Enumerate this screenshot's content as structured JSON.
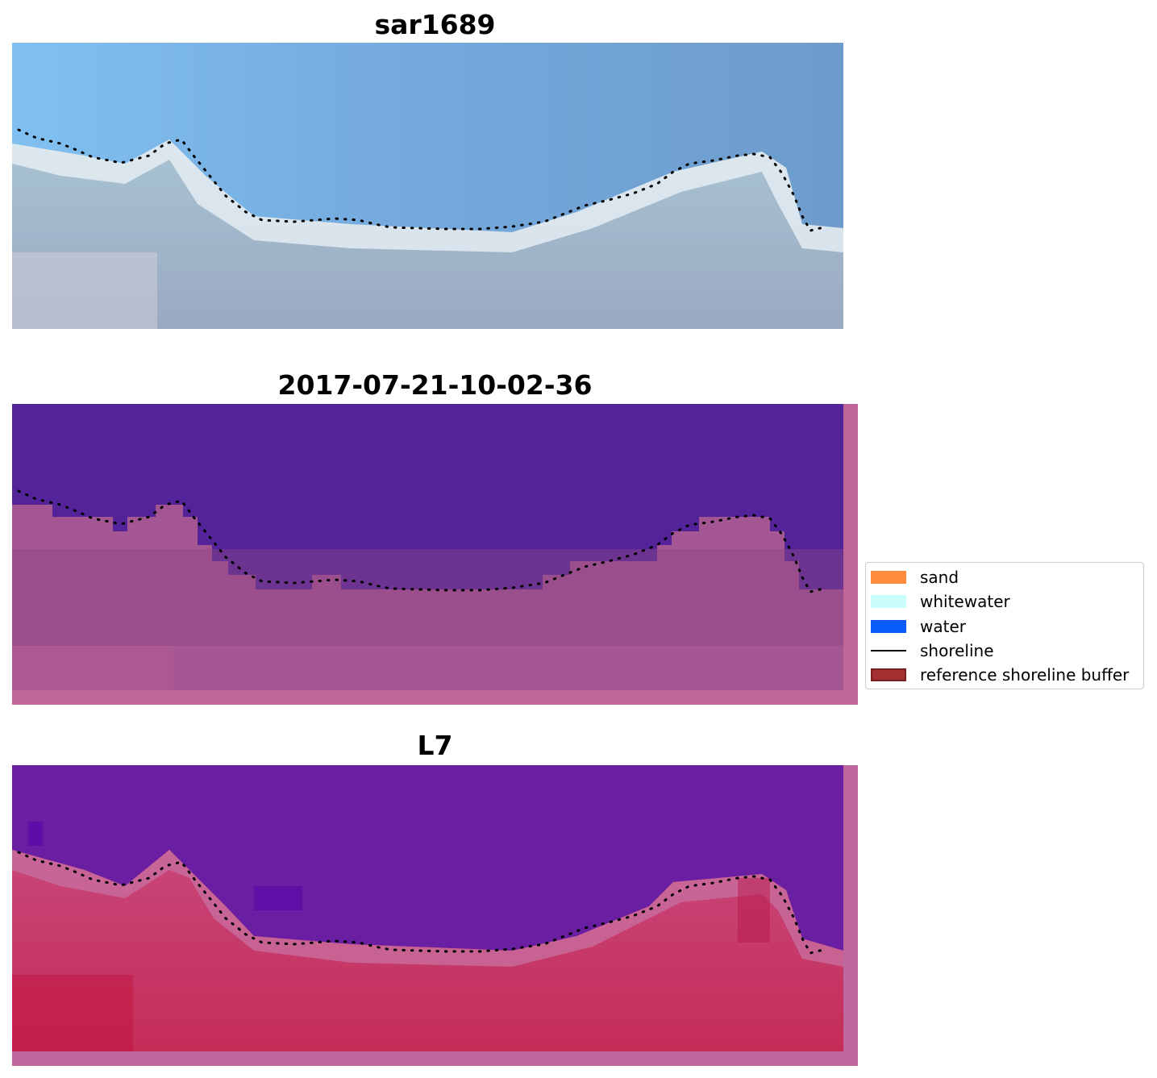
{
  "panels": [
    {
      "title": "sar1689",
      "kind": "rgb"
    },
    {
      "title": "2017-07-21-10-02-36",
      "kind": "classified"
    },
    {
      "title": "L7",
      "kind": "index"
    }
  ],
  "legend": {
    "items": [
      {
        "label": "sand",
        "color": "#ff8c3a",
        "type": "patch"
      },
      {
        "label": "whitewater",
        "color": "#c8fdfc",
        "type": "patch"
      },
      {
        "label": "water",
        "color": "#0a5cfa",
        "type": "patch"
      },
      {
        "label": "shoreline",
        "color": "#000000",
        "type": "line"
      },
      {
        "label": "reference shoreline buffer",
        "color": "#a33030",
        "type": "patch"
      }
    ]
  },
  "colors": {
    "rgb_sky": "#78aadb",
    "rgb_foam": "#e6eef2",
    "rgb_land": "#9fb7c8",
    "class_water": "#53239a",
    "class_land": "#a45692",
    "class_border": "#bf6598",
    "index_water": "#6a1ea2",
    "index_land": "#c23a68",
    "shoreline": "#000000"
  }
}
